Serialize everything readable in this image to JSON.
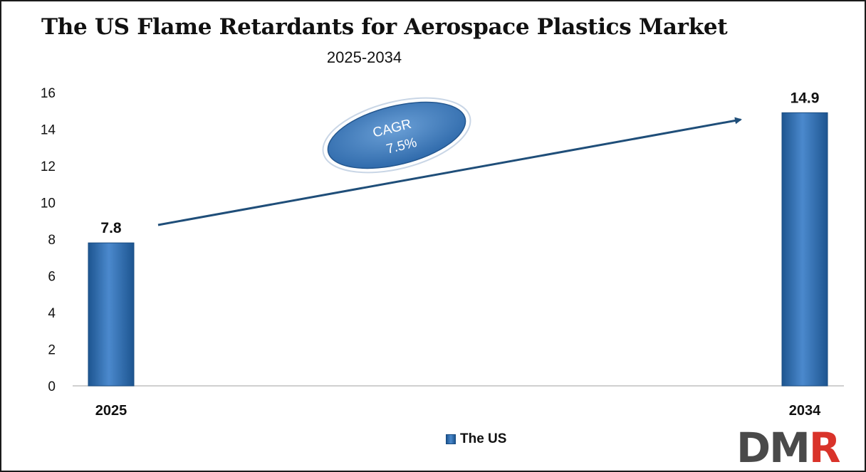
{
  "chart_data": {
    "type": "bar",
    "title": "The US Flame Retardants for Aerospace Plastics Market",
    "subtitle": "2025-2034",
    "categories": [
      "2025",
      "2034"
    ],
    "series": [
      {
        "name": "The US",
        "values": [
          7.8,
          14.9
        ]
      }
    ],
    "data_labels": [
      "7.8",
      "14.9"
    ],
    "ylim": [
      0,
      16
    ],
    "yticks": [
      "0",
      "2",
      "4",
      "6",
      "8",
      "10",
      "12",
      "14",
      "16"
    ],
    "xlabel": "",
    "ylabel": "",
    "grid": false,
    "legend_position": "bottom",
    "annotation": {
      "line1": "CAGR",
      "line2": "7.5%"
    },
    "colors": {
      "bar": "#2f6fb4",
      "bar_dark": "#1d5590",
      "arrow": "#1f4e79",
      "ellipse": "#3e7fc2"
    }
  },
  "logo": {
    "letters": [
      "D",
      "M",
      "R"
    ]
  }
}
